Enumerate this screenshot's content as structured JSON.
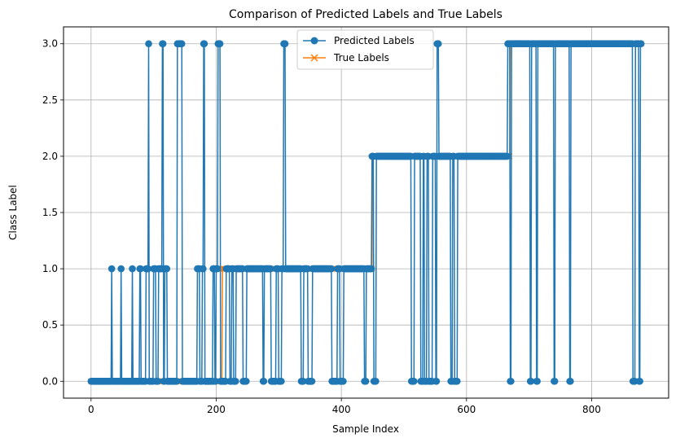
{
  "chart_data": {
    "type": "line",
    "title": "Comparison of Predicted Labels and True Labels",
    "xlabel": "Sample Index",
    "ylabel": "Class Label",
    "xlim": [
      -44,
      923
    ],
    "ylim": [
      -0.15,
      3.15
    ],
    "xticks": [
      0,
      200,
      400,
      600,
      800
    ],
    "yticks": [
      0.0,
      0.5,
      1.0,
      1.5,
      2.0,
      2.5,
      3.0
    ],
    "ytick_labels": [
      "0.0",
      "0.5",
      "1.0",
      "1.5",
      "2.0",
      "2.5",
      "3.0"
    ],
    "grid": true,
    "legend_position": "top-center",
    "n_samples": 880,
    "series": [
      {
        "name": "Predicted Labels",
        "color": "#1f77b4",
        "marker": "circle",
        "segments": [
          [
            0,
            33,
            0
          ],
          [
            33,
            34,
            1
          ],
          [
            34,
            48,
            0
          ],
          [
            48,
            49,
            1
          ],
          [
            49,
            66,
            0
          ],
          [
            66,
            67,
            1
          ],
          [
            67,
            78,
            0
          ],
          [
            78,
            80,
            1
          ],
          [
            80,
            88,
            0
          ],
          [
            88,
            90,
            1
          ],
          [
            92,
            93,
            3
          ],
          [
            93,
            100,
            0
          ],
          [
            100,
            104,
            1
          ],
          [
            104,
            108,
            0
          ],
          [
            108,
            110,
            1
          ],
          [
            114,
            116,
            3
          ],
          [
            116,
            118,
            0
          ],
          [
            118,
            122,
            1
          ],
          [
            122,
            138,
            0
          ],
          [
            138,
            146,
            3
          ],
          [
            146,
            170,
            0
          ],
          [
            170,
            174,
            1
          ],
          [
            174,
            178,
            0
          ],
          [
            178,
            180,
            1
          ],
          [
            180,
            182,
            3
          ],
          [
            182,
            195,
            0
          ],
          [
            195,
            198,
            1
          ],
          [
            198,
            200,
            0
          ],
          [
            200,
            203,
            1
          ],
          [
            203,
            207,
            3
          ],
          [
            207,
            216,
            0
          ],
          [
            216,
            222,
            1
          ],
          [
            222,
            225,
            0
          ],
          [
            225,
            228,
            1
          ],
          [
            228,
            232,
            0
          ],
          [
            232,
            243,
            1
          ],
          [
            243,
            249,
            0
          ],
          [
            249,
            275,
            1
          ],
          [
            275,
            277,
            0
          ],
          [
            277,
            288,
            1
          ],
          [
            288,
            296,
            0
          ],
          [
            296,
            300,
            1
          ],
          [
            300,
            305,
            0
          ],
          [
            305,
            308,
            1
          ],
          [
            308,
            311,
            3
          ],
          [
            311,
            336,
            1
          ],
          [
            336,
            340,
            0
          ],
          [
            340,
            347,
            1
          ],
          [
            347,
            354,
            0
          ],
          [
            354,
            385,
            1
          ],
          [
            385,
            394,
            0
          ],
          [
            394,
            398,
            1
          ],
          [
            398,
            404,
            0
          ],
          [
            404,
            437,
            1
          ],
          [
            437,
            440,
            0
          ],
          [
            440,
            449,
            1
          ],
          [
            449,
            452,
            2
          ],
          [
            452,
            456,
            0
          ],
          [
            456,
            512,
            2
          ],
          [
            512,
            517,
            0
          ],
          [
            517,
            527,
            2
          ],
          [
            527,
            531,
            0
          ],
          [
            531,
            533,
            2
          ],
          [
            533,
            537,
            0
          ],
          [
            537,
            540,
            2
          ],
          [
            540,
            546,
            0
          ],
          [
            546,
            551,
            2
          ],
          [
            551,
            553,
            0
          ],
          [
            553,
            556,
            3
          ],
          [
            556,
            575,
            2
          ],
          [
            575,
            578,
            0
          ],
          [
            578,
            581,
            2
          ],
          [
            581,
            586,
            0
          ],
          [
            586,
            666,
            2
          ],
          [
            666,
            670,
            3
          ],
          [
            670,
            672,
            0
          ],
          [
            672,
            702,
            3
          ],
          [
            702,
            704,
            0
          ],
          [
            704,
            712,
            3
          ],
          [
            712,
            714,
            0
          ],
          [
            714,
            740,
            3
          ],
          [
            740,
            742,
            0
          ],
          [
            742,
            765,
            3
          ],
          [
            765,
            767,
            0
          ],
          [
            767,
            866,
            3
          ],
          [
            866,
            870,
            0
          ],
          [
            870,
            876,
            3
          ],
          [
            876,
            878,
            0
          ],
          [
            878,
            880,
            3
          ]
        ]
      },
      {
        "name": "True Labels",
        "color": "#ff7f0e",
        "marker": "x",
        "segments": [
          [
            0,
            210,
            0
          ],
          [
            210,
            450,
            1
          ],
          [
            450,
            670,
            2
          ],
          [
            670,
            880,
            3
          ]
        ]
      }
    ]
  }
}
